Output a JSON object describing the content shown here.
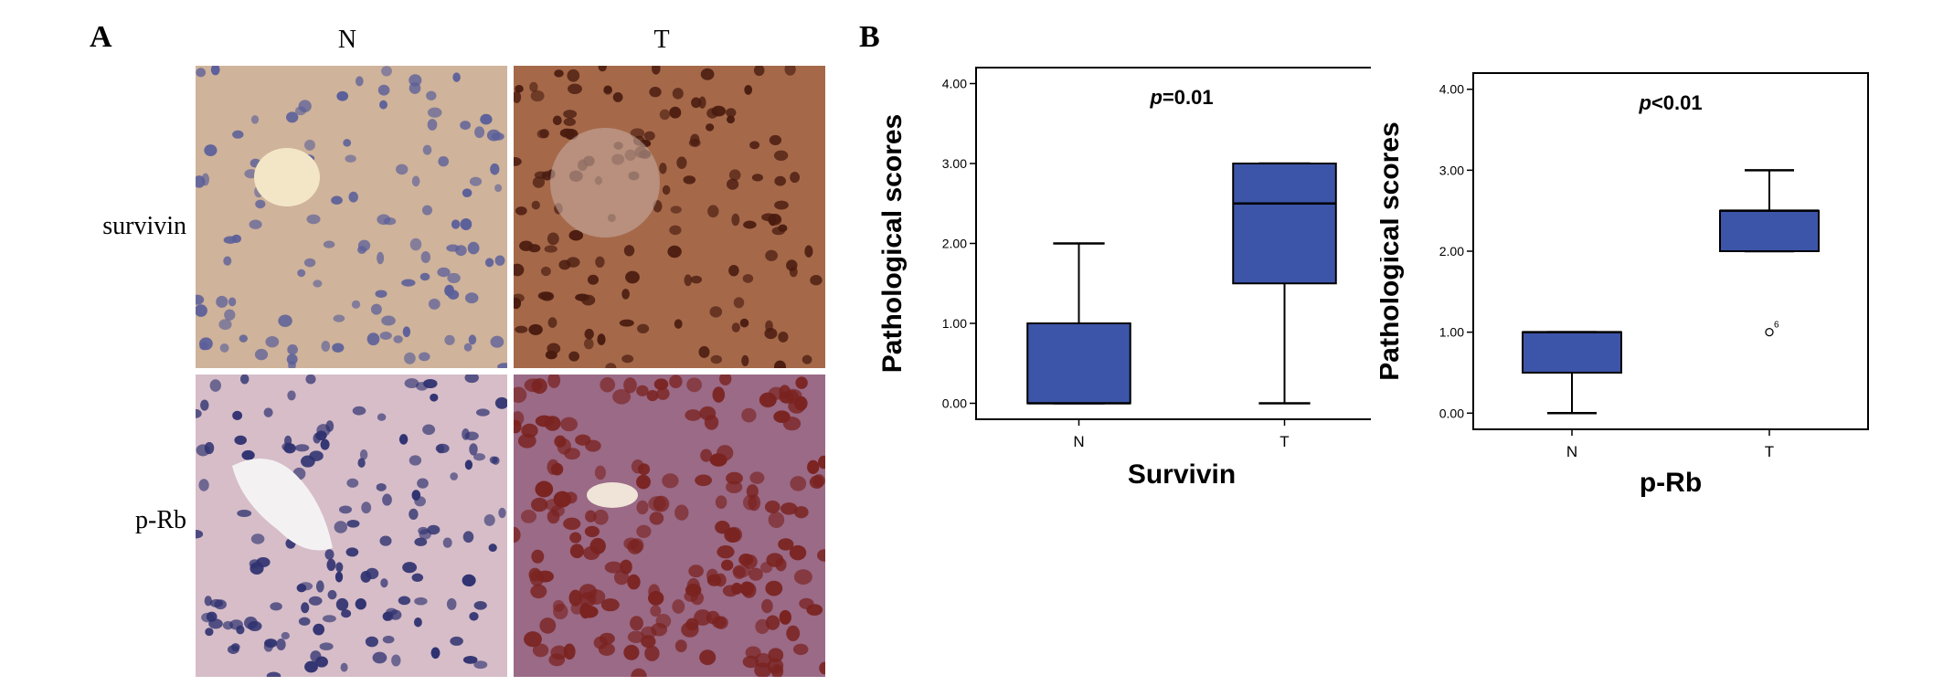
{
  "panel_a": {
    "letter": "A",
    "columns": [
      "N",
      "T"
    ],
    "rows": [
      "survivin",
      "p-Rb"
    ]
  },
  "panel_b": {
    "letter": "B"
  },
  "colors": {
    "box_fill": "#3d55a8",
    "tissue_N_bg": "#cfb39a",
    "tissue_T_survivin_bg": "#a5694a",
    "tissue_N_prb_bg": "#d6bdc8",
    "tissue_T_prb_bg": "#9a6a86"
  },
  "chart_data": [
    {
      "type": "box",
      "categories": [
        "N",
        "T"
      ],
      "xlabel": "Survivin",
      "ylabel": "Pathological scores",
      "ylim": [
        0,
        4
      ],
      "yticks": [
        "0.00",
        "1.00",
        "2.00",
        "3.00",
        "4.00"
      ],
      "annotation": {
        "p": "p",
        "rest": "=0.01"
      },
      "boxes": [
        {
          "category": "N",
          "min": 0,
          "q1": 0,
          "median": 0,
          "q3": 1,
          "max": 2,
          "outliers": []
        },
        {
          "category": "T",
          "min": 0,
          "q1": 1.5,
          "median": 2.5,
          "q3": 3,
          "max": 3,
          "outliers": []
        }
      ]
    },
    {
      "type": "box",
      "categories": [
        "N",
        "T"
      ],
      "xlabel": "p-Rb",
      "ylabel": "Pathological scores",
      "ylim": [
        0,
        4
      ],
      "yticks": [
        "0.00",
        "1.00",
        "2.00",
        "3.00",
        "4.00"
      ],
      "annotation": {
        "p": "p",
        "rest": "<0.01"
      },
      "boxes": [
        {
          "category": "N",
          "min": 0,
          "q1": 0.5,
          "median": 1,
          "q3": 1,
          "max": 1,
          "outliers": []
        },
        {
          "category": "T",
          "min": 2,
          "q1": 2,
          "median": 2.5,
          "q3": 2.5,
          "max": 3,
          "outliers": [
            {
              "value": 1,
              "label": "6"
            }
          ]
        }
      ]
    }
  ]
}
